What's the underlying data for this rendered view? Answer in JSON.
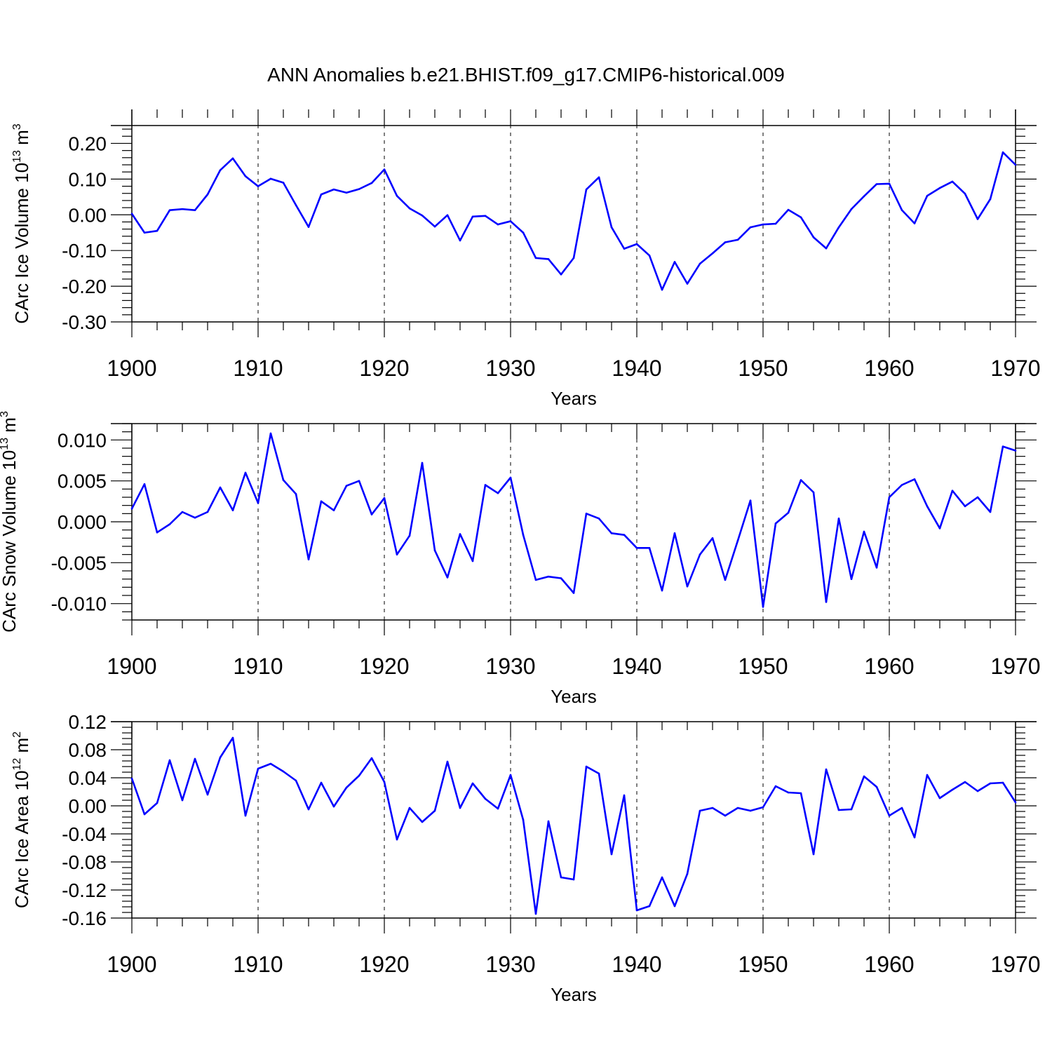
{
  "title": "ANN Anomalies b.e21.BHIST.f09_g17.CMIP6-historical.009",
  "line_color": "#0000ff",
  "chart_data": [
    {
      "type": "line",
      "title": "ANN Anomalies b.e21.BHIST.f09_g17.CMIP6-historical.009",
      "xlabel": "Years",
      "ylabel_main": "CArc Ice Volume 10",
      "ylabel_sup": "13",
      "ylabel_tail": " m",
      "ylabel_sup2": "3",
      "xlim": [
        1900,
        1970
      ],
      "ylim": [
        -0.3,
        0.25
      ],
      "xticks": [
        "1900",
        "1910",
        "1920",
        "1930",
        "1940",
        "1950",
        "1960",
        "1970"
      ],
      "yticks": [
        {
          "value": 0.2,
          "label": "0.20"
        },
        {
          "value": 0.1,
          "label": "0.10"
        },
        {
          "value": 0.0,
          "label": "0.00"
        },
        {
          "value": -0.1,
          "label": "-0.10"
        },
        {
          "value": -0.2,
          "label": "-0.20"
        },
        {
          "value": -0.3,
          "label": "-0.30"
        }
      ],
      "series": [
        {
          "name": "CArc Ice Volume",
          "values": [
            0.003,
            -0.05,
            -0.045,
            0.013,
            0.016,
            0.013,
            0.057,
            0.125,
            0.158,
            0.108,
            0.08,
            0.101,
            0.09,
            0.027,
            -0.034,
            0.057,
            0.071,
            0.062,
            0.072,
            0.089,
            0.127,
            0.053,
            0.018,
            -0.002,
            -0.033,
            -0.001,
            -0.072,
            -0.005,
            -0.003,
            -0.027,
            -0.018,
            -0.05,
            -0.121,
            -0.124,
            -0.167,
            -0.121,
            0.071,
            0.105,
            -0.035,
            -0.095,
            -0.082,
            -0.114,
            -0.21,
            -0.132,
            -0.193,
            -0.137,
            -0.108,
            -0.077,
            -0.07,
            -0.035,
            -0.027,
            -0.025,
            0.014,
            -0.007,
            -0.063,
            -0.094,
            -0.035,
            0.016,
            0.052,
            0.086,
            0.087,
            0.013,
            -0.024,
            0.053,
            0.075,
            0.093,
            0.059,
            -0.012,
            0.044,
            0.175,
            0.14
          ]
        }
      ]
    },
    {
      "type": "line",
      "xlabel": "Years",
      "ylabel_main": "CArc Snow Volume 10",
      "ylabel_sup": "13",
      "ylabel_tail": " m",
      "ylabel_sup2": "3",
      "xlim": [
        1900,
        1970
      ],
      "ylim": [
        -0.012,
        0.012
      ],
      "xticks": [
        "1900",
        "1910",
        "1920",
        "1930",
        "1940",
        "1950",
        "1960",
        "1970"
      ],
      "yticks": [
        {
          "value": 0.01,
          "label": "0.010"
        },
        {
          "value": 0.005,
          "label": "0.005"
        },
        {
          "value": 0.0,
          "label": "0.000"
        },
        {
          "value": -0.005,
          "label": "-0.005"
        },
        {
          "value": -0.01,
          "label": "-0.010"
        }
      ],
      "series": [
        {
          "name": "CArc Snow Volume",
          "values": [
            0.0016,
            0.0046,
            -0.0013,
            -0.0003,
            0.0012,
            0.0005,
            0.0012,
            0.0042,
            0.0014,
            0.006,
            0.0023,
            0.0108,
            0.0051,
            0.0034,
            -0.0046,
            0.0025,
            0.0014,
            0.0044,
            0.005,
            0.0009,
            0.0029,
            -0.004,
            -0.0017,
            0.0072,
            -0.0035,
            -0.0068,
            -0.0015,
            -0.0048,
            0.0045,
            0.0035,
            0.0054,
            -0.0016,
            -0.0071,
            -0.0067,
            -0.0069,
            -0.0087,
            0.001,
            0.0004,
            -0.0014,
            -0.0016,
            -0.0032,
            -0.0032,
            -0.0084,
            -0.0014,
            -0.0079,
            -0.004,
            -0.002,
            -0.0071,
            -0.0023,
            0.0026,
            -0.0104,
            -0.0002,
            0.0011,
            0.0051,
            0.0036,
            -0.0098,
            0.0004,
            -0.007,
            -0.0012,
            -0.0056,
            0.003,
            0.0045,
            0.0052,
            0.0019,
            -0.0008,
            0.0038,
            0.0019,
            0.003,
            0.0012,
            0.0092,
            0.0087
          ]
        }
      ]
    },
    {
      "type": "line",
      "xlabel": "Years",
      "ylabel_main": "CArc Ice Area 10",
      "ylabel_sup": "12",
      "ylabel_tail": " m",
      "ylabel_sup2": "2",
      "xlim": [
        1900,
        1970
      ],
      "ylim": [
        -0.16,
        0.12
      ],
      "xticks": [
        "1900",
        "1910",
        "1920",
        "1930",
        "1940",
        "1950",
        "1960",
        "1970"
      ],
      "yticks": [
        {
          "value": 0.12,
          "label": "0.12"
        },
        {
          "value": 0.08,
          "label": "0.08"
        },
        {
          "value": 0.04,
          "label": "0.04"
        },
        {
          "value": 0.0,
          "label": "0.00"
        },
        {
          "value": -0.04,
          "label": "-0.04"
        },
        {
          "value": -0.08,
          "label": "-0.08"
        },
        {
          "value": -0.12,
          "label": "-0.12"
        },
        {
          "value": -0.16,
          "label": "-0.16"
        }
      ],
      "series": [
        {
          "name": "CArc Ice Area",
          "values": [
            0.039,
            -0.012,
            0.004,
            0.065,
            0.008,
            0.067,
            0.016,
            0.069,
            0.097,
            -0.014,
            0.053,
            0.06,
            0.049,
            0.036,
            -0.005,
            0.033,
            -0.001,
            0.026,
            0.043,
            0.068,
            0.034,
            -0.048,
            -0.003,
            -0.023,
            -0.007,
            0.063,
            -0.003,
            0.032,
            0.01,
            -0.004,
            0.044,
            -0.02,
            -0.154,
            -0.022,
            -0.102,
            -0.105,
            0.056,
            0.046,
            -0.069,
            0.015,
            -0.149,
            -0.143,
            -0.102,
            -0.143,
            -0.097,
            -0.007,
            -0.003,
            -0.014,
            -0.003,
            -0.007,
            -0.002,
            0.028,
            0.019,
            0.018,
            -0.069,
            0.052,
            -0.006,
            -0.005,
            0.042,
            0.027,
            -0.014,
            -0.003,
            -0.045,
            0.044,
            0.011,
            0.023,
            0.034,
            0.021,
            0.032,
            0.033,
            0.005
          ]
        }
      ]
    }
  ]
}
